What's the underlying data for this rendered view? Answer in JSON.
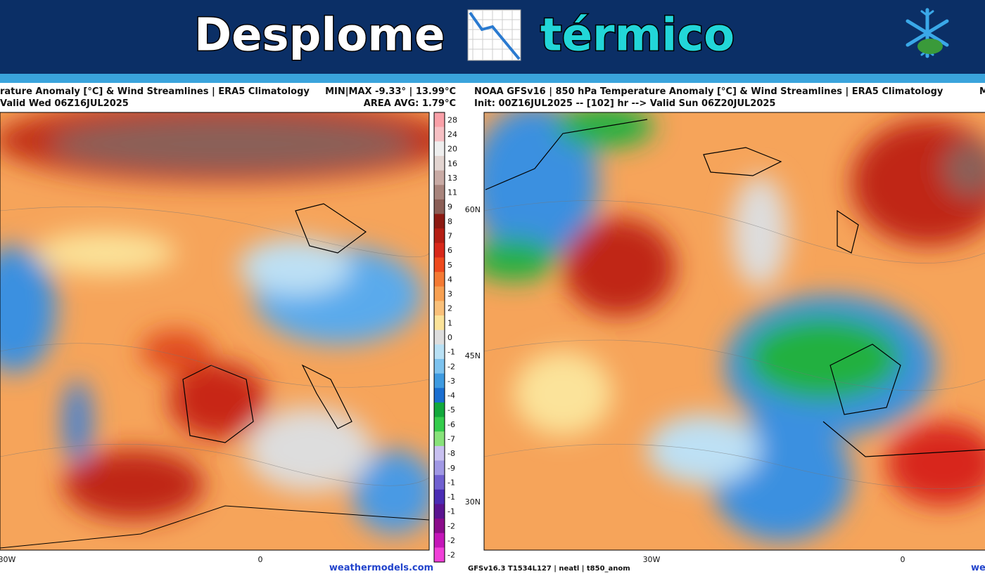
{
  "header": {
    "title_part1": "Desplome",
    "title_part2": "térmico"
  },
  "left_map": {
    "title": "rature Anomaly [°C] & Wind Streamlines | ERA5 Climatology",
    "minmax": "MIN|MAX -9.33° | 13.99°C",
    "valid": "Valid Wed 06Z16JUL2025",
    "area_avg": "AREA AVG: 1.79°C",
    "lon_labels": [
      "30W",
      "0"
    ],
    "credit": "weathermodels.com"
  },
  "colorbar": [
    {
      "label": "28",
      "color": "#f9a0a8"
    },
    {
      "label": "24",
      "color": "#f6c0c4"
    },
    {
      "label": "20",
      "color": "#eeeeee"
    },
    {
      "label": "16",
      "color": "#e2d4d0"
    },
    {
      "label": "13",
      "color": "#c8aaa4"
    },
    {
      "label": "11",
      "color": "#a8847c"
    },
    {
      "label": "9",
      "color": "#8a5e56"
    },
    {
      "label": "8",
      "color": "#8c1a12"
    },
    {
      "label": "7",
      "color": "#b41e14"
    },
    {
      "label": "6",
      "color": "#d8281a"
    },
    {
      "label": "5",
      "color": "#ee4a1e"
    },
    {
      "label": "4",
      "color": "#f47a34"
    },
    {
      "label": "3",
      "color": "#f7a052"
    },
    {
      "label": "2",
      "color": "#f9c07a"
    },
    {
      "label": "1",
      "color": "#fbe39a"
    },
    {
      "label": "0",
      "color": "#dddddd"
    },
    {
      "label": "-1",
      "color": "#b8e0f4"
    },
    {
      "label": "-2",
      "color": "#7cc2ee"
    },
    {
      "label": "-3",
      "color": "#3e9ae0"
    },
    {
      "label": "-4",
      "color": "#1a6ed0"
    },
    {
      "label": "-5",
      "color": "#12a83c"
    },
    {
      "label": "-6",
      "color": "#34cc4c"
    },
    {
      "label": "-7",
      "color": "#88e27a"
    },
    {
      "label": "-8",
      "color": "#c8c0f0"
    },
    {
      "label": "-9",
      "color": "#a098e4"
    },
    {
      "label": "-1",
      "color": "#7060d0"
    },
    {
      "label": "-1",
      "color": "#4a2cb4"
    },
    {
      "label": "-1",
      "color": "#5a1490"
    },
    {
      "label": "-2",
      "color": "#8a0c8a"
    },
    {
      "label": "-2",
      "color": "#c416b8"
    },
    {
      "label": "-2",
      "color": "#f040d8"
    }
  ],
  "right_map": {
    "title": "NOAA GFSv16 |  850 hPa Temperature Anomaly [°C] & Wind Streamlines | ERA5 Climatology",
    "minmax": "M",
    "init": "Init: 00Z16JUL2025 -- [102] hr --> Valid Sun 06Z20JUL2025",
    "lat_labels": [
      "60N",
      "45N",
      "30N"
    ],
    "lon_labels": [
      "30W",
      "0"
    ],
    "footer": "GFSv16.3 T1534L127 | neatl | t850_anom",
    "credit": "we"
  }
}
